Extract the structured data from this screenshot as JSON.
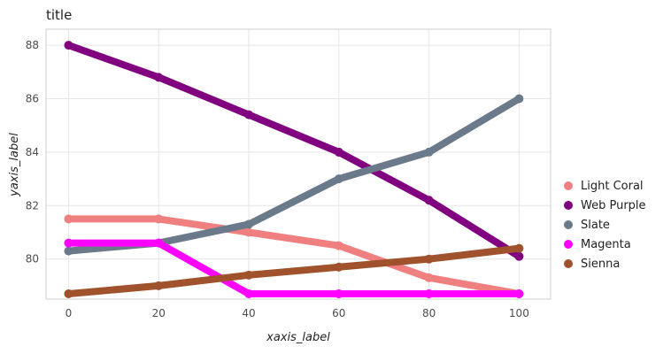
{
  "chart_data": {
    "type": "scatter",
    "title": "title",
    "xlabel": "xaxis_label",
    "ylabel": "yaxis_label",
    "xlim": [
      -5,
      107
    ],
    "ylim": [
      78.5,
      88.6
    ],
    "x_ticks": [
      0,
      20,
      40,
      60,
      80,
      100
    ],
    "y_ticks": [
      80,
      82,
      84,
      86,
      88
    ],
    "grid": true,
    "legend_position": "right",
    "series": [
      {
        "name": "Light Coral",
        "color": "#f08080",
        "x": [
          0,
          20,
          40,
          60,
          80,
          100
        ],
        "y": [
          81.5,
          81.5,
          81.0,
          80.5,
          79.3,
          78.7
        ]
      },
      {
        "name": "Web Purple",
        "color": "#800080",
        "x": [
          0,
          20,
          40,
          60,
          80,
          100
        ],
        "y": [
          88.0,
          86.8,
          85.4,
          84.0,
          82.2,
          80.1
        ]
      },
      {
        "name": "Slate",
        "color": "#6b7a8a",
        "x": [
          0,
          20,
          40,
          60,
          80,
          100
        ],
        "y": [
          80.3,
          80.6,
          81.3,
          83.0,
          84.0,
          86.0
        ]
      },
      {
        "name": "Magenta",
        "color": "#ff00ff",
        "x": [
          0,
          20,
          40,
          60,
          80,
          100
        ],
        "y": [
          80.6,
          80.6,
          78.7,
          78.7,
          78.7,
          78.7
        ]
      },
      {
        "name": "Sienna",
        "color": "#a0522d",
        "x": [
          0,
          20,
          40,
          60,
          80,
          100
        ],
        "y": [
          78.7,
          79.0,
          79.4,
          79.7,
          80.0,
          80.4
        ]
      }
    ]
  }
}
